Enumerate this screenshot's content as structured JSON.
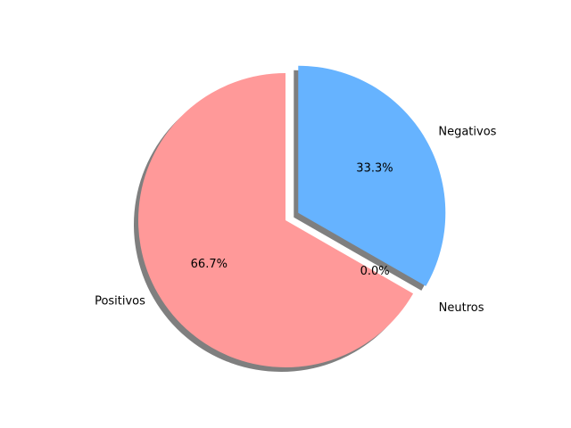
{
  "chart_data": {
    "type": "pie",
    "title": "",
    "slices": [
      {
        "label": "Positivos",
        "value": 66.7,
        "pct_label": "66.7%",
        "color": "#ff9999",
        "exploded": false
      },
      {
        "label": "Neutros",
        "value": 0.0,
        "pct_label": "0.0%",
        "color": "#99ff99",
        "exploded": true
      },
      {
        "label": "Negativos",
        "value": 33.3,
        "pct_label": "33.3%",
        "color": "#66b3ff",
        "exploded": true
      }
    ],
    "start_angle_deg": 90,
    "direction": "counterclockwise",
    "shadow": true,
    "legend": "none"
  }
}
